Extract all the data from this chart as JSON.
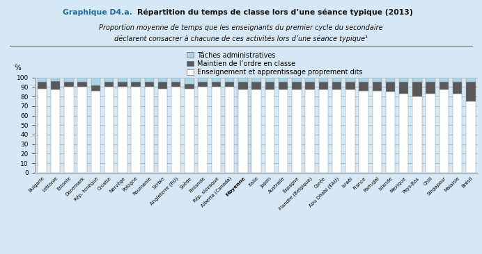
{
  "title_prefix": "Graphique D4.a.",
  "title_main": "  Répartition du temps de classe lors d’une séance typique (2013)",
  "subtitle1": "Proportion moyenne de temps que les enseignants du premier cycle du secondaire",
  "subtitle2": "déclarent consacrer à chacune de ces activités lors d’une séance typique¹",
  "legend_labels": [
    "Tâches administratives",
    "Maintien de l’ordre en classe",
    "Enseignement et apprentissage proprement dits"
  ],
  "ylabel": "%",
  "background_color": "#d6e8f5",
  "moyenne_index": 15,
  "categories": [
    "Bulgarie",
    "Lettonie",
    "Estonie",
    "Danemark",
    "Rép. tchèque",
    "Croatie",
    "Norvège",
    "Pologne",
    "Roumanie",
    "Serbie",
    "Angleterre (RU)",
    "Suède",
    "Finlande",
    "Rép. slovaque",
    "Alberta (Canada)",
    "Moyenne",
    "Italie",
    "Japon",
    "Australie",
    "Espagne",
    "Flandre (Belgique)",
    "Corée",
    "Abu Dhabi (EAU)",
    "Israël",
    "France",
    "Portugal",
    "Islande",
    "Mexique",
    "Pays-Bas",
    "Chili",
    "Singapour",
    "Malaisie",
    "Brésil"
  ],
  "admin_vals": [
    5,
    4,
    5,
    5,
    8,
    5,
    5,
    5,
    5,
    5,
    5,
    7,
    5,
    5,
    5,
    5,
    5,
    5,
    5,
    5,
    5,
    5,
    5,
    5,
    5,
    5,
    5,
    5,
    5,
    5,
    5,
    5,
    5
  ],
  "order_vals": [
    7,
    9,
    5,
    5,
    6,
    5,
    5,
    5,
    5,
    7,
    5,
    5,
    5,
    5,
    5,
    8,
    8,
    8,
    8,
    8,
    8,
    8,
    8,
    8,
    9,
    9,
    10,
    12,
    15,
    12,
    8,
    12,
    20
  ],
  "teach_vals": [
    88,
    87,
    90,
    90,
    86,
    90,
    90,
    90,
    90,
    88,
    90,
    88,
    90,
    90,
    90,
    87,
    87,
    87,
    87,
    87,
    87,
    87,
    87,
    87,
    86,
    86,
    85,
    83,
    80,
    83,
    87,
    83,
    75
  ],
  "color_admin": "#a8d4e6",
  "color_order": "#595959",
  "color_teach": "#ffffff",
  "color_moyenne_bg": "#c2d9ef"
}
